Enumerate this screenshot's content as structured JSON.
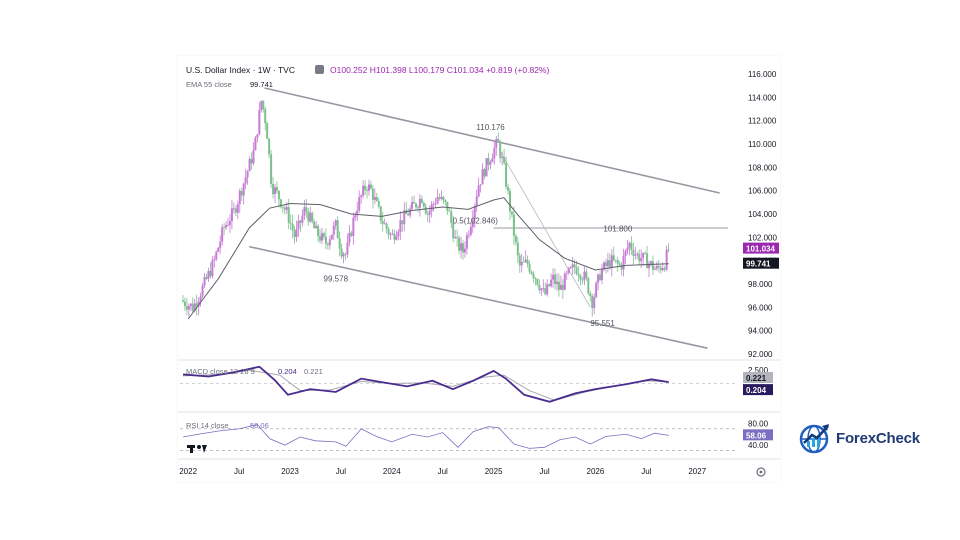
{
  "header": {
    "symbol": "U.S. Dollar Index · 1W · TVC",
    "ohlc": "O100.252 H101.398 L100.179 C101.034 +0.819 (+0.82%)",
    "ema_label": "EMA 55 close",
    "ema_value": "99.741",
    "macd_label": "MACD close 12 26 9",
    "macd_value1": "0.204",
    "macd_value2": "0.221",
    "rsi_label": "RSI 14 close",
    "rsi_value": "58.06"
  },
  "brand": {
    "name": "ForexCheck",
    "logo": "globe-chart-logo"
  },
  "colors": {
    "up": "#c77ad6",
    "down": "#7cc08d",
    "ema": "#5d606b",
    "channel": "#9598a1",
    "macd_line": "#4a2c8f",
    "signal_line": "#a8a8b0",
    "rsi": "#7a6fc0",
    "price_tag": "#9c27b0",
    "ema_tag": "#131722"
  },
  "chart_data": {
    "type": "candlestick",
    "title": "U.S. Dollar Index · 1W · TVC",
    "ylim": [
      92,
      116
    ],
    "y_ticks": [
      "116.000",
      "114.000",
      "112.000",
      "110.000",
      "108.000",
      "106.000",
      "104.000",
      "102.000",
      "100.000",
      "98.000",
      "96.000",
      "94.000",
      "92.000"
    ],
    "y_tick_values": [
      116,
      114,
      112,
      110,
      108,
      106,
      104,
      102,
      100,
      98,
      96,
      94,
      92
    ],
    "x_ticks": [
      "2022",
      "Jul",
      "2023",
      "Jul",
      "2024",
      "Jul",
      "2025",
      "Jul",
      "2026",
      "Jul",
      "2027"
    ],
    "x_tick_values": [
      2022.0,
      2022.5,
      2023.0,
      2023.5,
      2024.0,
      2024.5,
      2025.0,
      2025.5,
      2026.0,
      2026.5,
      2027.0
    ],
    "x_range": [
      2021.92,
      2027.4
    ],
    "price_path": [
      [
        2021.93,
        96.6
      ],
      [
        2022.05,
        96.0
      ],
      [
        2022.15,
        97.8
      ],
      [
        2022.25,
        99.8
      ],
      [
        2022.35,
        102.8
      ],
      [
        2022.45,
        104.2
      ],
      [
        2022.55,
        106.8
      ],
      [
        2022.65,
        109.5
      ],
      [
        2022.72,
        113.8
      ],
      [
        2022.77,
        111.5
      ],
      [
        2022.82,
        106.5
      ],
      [
        2022.9,
        105.3
      ],
      [
        2022.98,
        103.9
      ],
      [
        2023.05,
        102.0
      ],
      [
        2023.15,
        104.5
      ],
      [
        2023.25,
        102.5
      ],
      [
        2023.35,
        101.5
      ],
      [
        2023.45,
        103.0
      ],
      [
        2023.5,
        101.0
      ],
      [
        2023.55,
        100.5
      ],
      [
        2023.65,
        104.5
      ],
      [
        2023.75,
        106.5
      ],
      [
        2023.8,
        106.0
      ],
      [
        2023.9,
        103.5
      ],
      [
        2024.0,
        102.0
      ],
      [
        2024.1,
        103.5
      ],
      [
        2024.2,
        104.5
      ],
      [
        2024.3,
        105.5
      ],
      [
        2024.35,
        104.0
      ],
      [
        2024.45,
        105.5
      ],
      [
        2024.55,
        104.5
      ],
      [
        2024.63,
        101.5
      ],
      [
        2024.7,
        100.8
      ],
      [
        2024.78,
        103.5
      ],
      [
        2024.85,
        106.5
      ],
      [
        2024.92,
        108.0
      ],
      [
        2025.0,
        109.5
      ],
      [
        2025.04,
        110.1
      ],
      [
        2025.1,
        108.0
      ],
      [
        2025.17,
        104.0
      ],
      [
        2025.25,
        99.5
      ],
      [
        2025.33,
        99.8
      ],
      [
        2025.42,
        98.5
      ],
      [
        2025.5,
        97.0
      ],
      [
        2025.58,
        98.5
      ],
      [
        2025.65,
        97.5
      ],
      [
        2025.73,
        98.8
      ],
      [
        2025.8,
        99.5
      ],
      [
        2025.9,
        98.5
      ],
      [
        2025.97,
        96.5
      ],
      [
        2026.05,
        99.0
      ],
      [
        2026.15,
        100.0
      ],
      [
        2026.25,
        99.5
      ],
      [
        2026.33,
        101.5
      ],
      [
        2026.4,
        100.5
      ],
      [
        2026.5,
        100.0
      ],
      [
        2026.6,
        99.2
      ],
      [
        2026.68,
        99.8
      ],
      [
        2026.72,
        101.0
      ]
    ],
    "ema_path": [
      [
        2022.0,
        95.0
      ],
      [
        2022.3,
        98.5
      ],
      [
        2022.6,
        102.8
      ],
      [
        2022.8,
        104.5
      ],
      [
        2023.0,
        104.9
      ],
      [
        2023.3,
        104.8
      ],
      [
        2023.6,
        104.0
      ],
      [
        2023.9,
        103.8
      ],
      [
        2024.2,
        104.3
      ],
      [
        2024.5,
        104.6
      ],
      [
        2024.75,
        104.4
      ],
      [
        2025.0,
        105.2
      ],
      [
        2025.1,
        105.4
      ],
      [
        2025.25,
        103.8
      ],
      [
        2025.45,
        101.8
      ],
      [
        2025.7,
        100.2
      ],
      [
        2026.0,
        99.2
      ],
      [
        2026.3,
        99.6
      ],
      [
        2026.72,
        99.741
      ]
    ],
    "channel_upper": [
      [
        2022.75,
        114.8
      ],
      [
        2027.22,
        105.8
      ]
    ],
    "channel_lower": [
      [
        2022.6,
        101.2
      ],
      [
        2027.1,
        92.5
      ]
    ],
    "horizontal_level": {
      "y": 102.8,
      "x_start": 2025.0,
      "x_end": 2027.3
    },
    "fib_lines": [
      [
        [
          2025.05,
          109.6
        ],
        [
          2025.95,
          96.0
        ]
      ]
    ],
    "annotations": [
      {
        "text": "110.176",
        "x": 2024.97,
        "y": 111.2
      },
      {
        "text": "101.800",
        "x": 2026.22,
        "y": 102.5
      },
      {
        "text": "99.578",
        "x": 2023.45,
        "y": 98.2
      },
      {
        "text": "95.551",
        "x": 2026.07,
        "y": 94.4
      },
      {
        "text": "0.5(102.846)",
        "x": 2024.82,
        "y": 103.2
      }
    ],
    "last_price": 101.034,
    "last_price_label": "101.034",
    "ema_last": 99.741,
    "ema_last_label": "99.741",
    "macd": {
      "ylim": [
        -3.2,
        2.5
      ],
      "y_ticks": [
        "2.500"
      ],
      "y_tick_values": [
        2.5
      ],
      "macd_path": [
        [
          2021.95,
          1.3
        ],
        [
          2022.2,
          1.0
        ],
        [
          2022.45,
          1.6
        ],
        [
          2022.7,
          2.4
        ],
        [
          2022.85,
          0.5
        ],
        [
          2022.98,
          -1.6
        ],
        [
          2023.2,
          -0.8
        ],
        [
          2023.45,
          -1.2
        ],
        [
          2023.7,
          0.7
        ],
        [
          2023.9,
          0.2
        ],
        [
          2024.15,
          -0.4
        ],
        [
          2024.4,
          0.4
        ],
        [
          2024.6,
          -0.8
        ],
        [
          2024.8,
          0.4
        ],
        [
          2025.0,
          1.8
        ],
        [
          2025.12,
          0.7
        ],
        [
          2025.3,
          -1.6
        ],
        [
          2025.55,
          -2.6
        ],
        [
          2025.8,
          -1.4
        ],
        [
          2026.0,
          -0.8
        ],
        [
          2026.3,
          -0.1
        ],
        [
          2026.55,
          0.6
        ],
        [
          2026.72,
          0.204
        ]
      ],
      "signal_path": [
        [
          2021.95,
          1.1
        ],
        [
          2022.3,
          1.3
        ],
        [
          2022.6,
          1.9
        ],
        [
          2022.9,
          1.2
        ],
        [
          2023.1,
          -1.0
        ],
        [
          2023.4,
          -0.9
        ],
        [
          2023.7,
          0.3
        ],
        [
          2024.0,
          0.0
        ],
        [
          2024.3,
          0.1
        ],
        [
          2024.6,
          -0.4
        ],
        [
          2024.9,
          0.9
        ],
        [
          2025.1,
          1.2
        ],
        [
          2025.35,
          -1.0
        ],
        [
          2025.6,
          -2.4
        ],
        [
          2025.9,
          -1.2
        ],
        [
          2026.2,
          -0.3
        ],
        [
          2026.5,
          0.4
        ],
        [
          2026.72,
          0.221
        ]
      ],
      "labels": [
        "0.221",
        "0.204"
      ],
      "label_values": [
        0.221,
        0.204
      ]
    },
    "rsi": {
      "ylim": [
        20,
        90
      ],
      "y_ticks": [
        "80.00",
        "40.00"
      ],
      "y_tick_values": [
        80,
        40
      ],
      "bands": [
        70,
        30
      ],
      "rsi_path": [
        [
          2021.95,
          55
        ],
        [
          2022.1,
          60
        ],
        [
          2022.3,
          66
        ],
        [
          2022.5,
          70
        ],
        [
          2022.68,
          78
        ],
        [
          2022.8,
          52
        ],
        [
          2022.95,
          40
        ],
        [
          2023.1,
          55
        ],
        [
          2023.25,
          48
        ],
        [
          2023.45,
          46
        ],
        [
          2023.55,
          38
        ],
        [
          2023.7,
          70
        ],
        [
          2023.85,
          56
        ],
        [
          2024.0,
          46
        ],
        [
          2024.2,
          60
        ],
        [
          2024.35,
          55
        ],
        [
          2024.5,
          63
        ],
        [
          2024.65,
          36
        ],
        [
          2024.8,
          65
        ],
        [
          2024.95,
          74
        ],
        [
          2025.05,
          72
        ],
        [
          2025.2,
          42
        ],
        [
          2025.35,
          34
        ],
        [
          2025.5,
          36
        ],
        [
          2025.65,
          50
        ],
        [
          2025.8,
          55
        ],
        [
          2025.95,
          42
        ],
        [
          2026.1,
          56
        ],
        [
          2026.3,
          60
        ],
        [
          2026.45,
          52
        ],
        [
          2026.58,
          62
        ],
        [
          2026.72,
          58.06
        ]
      ],
      "label": "58.06"
    }
  }
}
